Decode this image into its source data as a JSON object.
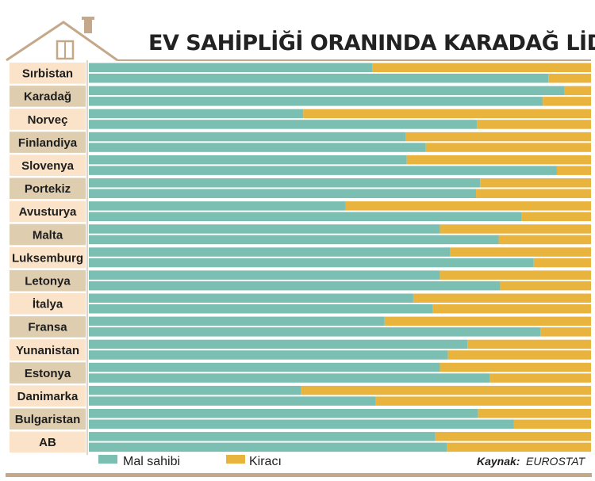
{
  "colors": {
    "owner": "#7bbfb3",
    "tenant": "#e9b43e",
    "label_bg_light": "#fae3c8",
    "label_bg_dark": "#dfcdb0",
    "frame": "#c4a889",
    "title": "#222222"
  },
  "icons": [
    "house-roof-icon"
  ],
  "chart_data": {
    "type": "bar",
    "orientation": "horizontal",
    "stacked": true,
    "title": "EV SAHİPLİĞİ ORANINDA KARADAĞ LİDER",
    "categories": [
      "Sırbistan",
      "Karadağ",
      "Norveç",
      "Finlandiya",
      "Slovenya",
      "Portekiz",
      "Avusturya",
      "Malta",
      "Luksemburg",
      "Letonya",
      "İtalya",
      "Fransa",
      "Yunanistan",
      "Estonya",
      "Danimarka",
      "Bulgaristan",
      "AB"
    ],
    "xlim": [
      0,
      100
    ],
    "series": [
      {
        "name": "Mal sahibi",
        "color": "#7bbfb3",
        "bar_a": [
          56.5,
          94.7,
          42.7,
          63.1,
          63.3,
          77.9,
          51.1,
          69.9,
          72.0,
          69.9,
          64.6,
          58.9,
          75.4,
          69.9,
          42.3,
          77.5,
          69.0
        ],
        "bar_b": [
          91.5,
          90.4,
          77.3,
          67.1,
          93.2,
          77.1,
          86.1,
          81.6,
          88.6,
          81.9,
          68.5,
          89.9,
          71.5,
          79.9,
          57.1,
          84.6,
          71.3
        ]
      },
      {
        "name": "Kiracı",
        "color": "#e9b43e",
        "bar_a": [
          43.5,
          5.3,
          57.3,
          36.9,
          36.7,
          22.1,
          48.9,
          30.1,
          28.0,
          30.1,
          35.4,
          41.1,
          24.6,
          30.1,
          57.7,
          22.5,
          31.0
        ],
        "bar_b": [
          8.5,
          9.6,
          22.7,
          32.9,
          6.8,
          22.9,
          13.9,
          18.4,
          11.4,
          18.1,
          31.5,
          10.1,
          28.5,
          20.1,
          42.9,
          15.4,
          28.7
        ]
      }
    ],
    "legend": [
      "Mal sahibi",
      "Kiracı"
    ],
    "legend_position": "bottom-left",
    "grid": false
  },
  "source": {
    "label": "Kaynak:",
    "value": "EUROSTAT"
  }
}
